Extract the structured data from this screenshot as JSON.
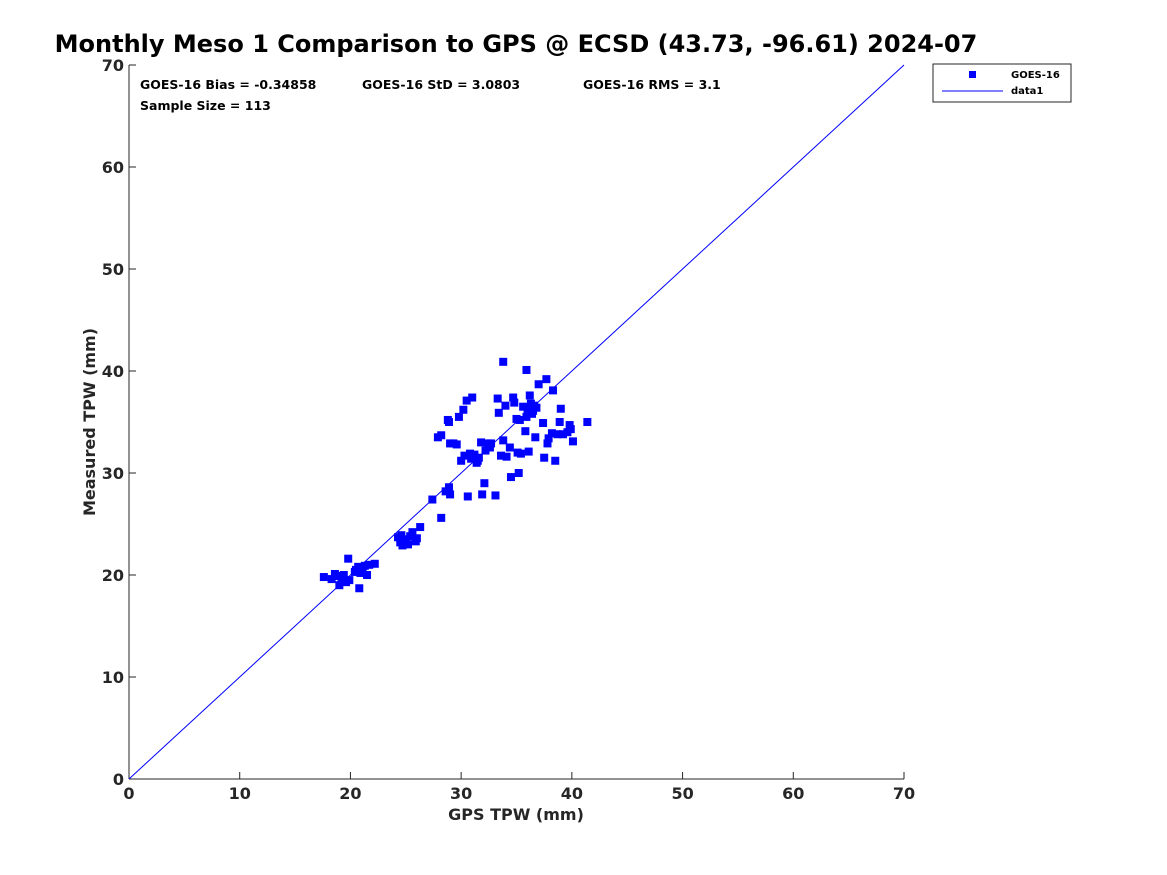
{
  "chart_data": {
    "type": "scatter",
    "title": "Monthly Meso 1 Comparison to GPS @ ECSD (43.73, -96.61) 2024-07",
    "xlabel": "GPS TPW (mm)",
    "ylabel": "Measured TPW (mm)",
    "xlim": [
      0,
      70
    ],
    "ylim": [
      0,
      70
    ],
    "xticks": [
      "0",
      "10",
      "20",
      "30",
      "40",
      "50",
      "60",
      "70"
    ],
    "yticks": [
      "0",
      "10",
      "20",
      "30",
      "40",
      "50",
      "60",
      "70"
    ],
    "grid": false,
    "legend_position": "top-right outside",
    "stats": {
      "bias": "GOES-16 Bias = -0.34858",
      "std": "GOES-16 StD = 3.0803",
      "rms": "GOES-16 RMS = 3.1",
      "sample_size": "Sample Size = 113"
    },
    "series": [
      {
        "name": "GOES-16",
        "marker": "square",
        "color": "#0000ff",
        "points": [
          [
            17.6,
            19.8
          ],
          [
            18.3,
            19.6
          ],
          [
            18.6,
            20.1
          ],
          [
            18.9,
            19.9
          ],
          [
            19.0,
            19.0
          ],
          [
            19.2,
            19.5
          ],
          [
            19.4,
            20.0
          ],
          [
            19.6,
            19.3
          ],
          [
            19.8,
            21.6
          ],
          [
            19.9,
            19.5
          ],
          [
            20.5,
            20.5
          ],
          [
            20.7,
            20.8
          ],
          [
            20.8,
            18.7
          ],
          [
            20.9,
            20.2
          ],
          [
            21.1,
            20.6
          ],
          [
            21.3,
            20.9
          ],
          [
            21.5,
            20.0
          ],
          [
            21.7,
            21.0
          ],
          [
            22.2,
            21.1
          ],
          [
            24.3,
            23.7
          ],
          [
            24.5,
            23.2
          ],
          [
            24.7,
            22.9
          ],
          [
            24.9,
            23.5
          ],
          [
            25.0,
            23.1
          ],
          [
            25.2,
            23.0
          ],
          [
            25.4,
            23.8
          ],
          [
            25.6,
            24.2
          ],
          [
            25.9,
            23.3
          ],
          [
            26.3,
            24.7
          ],
          [
            27.4,
            27.4
          ],
          [
            27.9,
            33.5
          ],
          [
            28.2,
            33.7
          ],
          [
            28.2,
            25.6
          ],
          [
            28.6,
            28.2
          ],
          [
            28.8,
            35.2
          ],
          [
            28.9,
            28.6
          ],
          [
            28.9,
            35.0
          ],
          [
            29.0,
            32.9
          ],
          [
            29.0,
            27.9
          ],
          [
            29.3,
            32.9
          ],
          [
            29.6,
            32.8
          ],
          [
            29.8,
            35.5
          ],
          [
            30.0,
            31.2
          ],
          [
            30.2,
            36.2
          ],
          [
            30.5,
            37.1
          ],
          [
            30.6,
            27.7
          ],
          [
            30.8,
            31.9
          ],
          [
            30.9,
            31.4
          ],
          [
            31.0,
            37.4
          ],
          [
            31.2,
            31.8
          ],
          [
            31.4,
            31.0
          ],
          [
            31.6,
            31.5
          ],
          [
            31.8,
            33.0
          ],
          [
            31.9,
            27.9
          ],
          [
            32.1,
            29.0
          ],
          [
            32.2,
            32.2
          ],
          [
            32.4,
            32.9
          ],
          [
            32.7,
            32.9
          ],
          [
            33.1,
            27.8
          ],
          [
            33.3,
            37.3
          ],
          [
            33.4,
            35.9
          ],
          [
            33.6,
            31.7
          ],
          [
            33.8,
            33.2
          ],
          [
            33.8,
            40.9
          ],
          [
            34.0,
            36.6
          ],
          [
            34.1,
            31.6
          ],
          [
            34.4,
            32.5
          ],
          [
            34.5,
            29.6
          ],
          [
            34.7,
            37.4
          ],
          [
            34.8,
            36.9
          ],
          [
            35.0,
            35.3
          ],
          [
            35.2,
            30.0
          ],
          [
            35.3,
            35.2
          ],
          [
            35.4,
            31.9
          ],
          [
            35.6,
            36.5
          ],
          [
            35.8,
            34.1
          ],
          [
            35.9,
            35.5
          ],
          [
            35.9,
            40.1
          ],
          [
            36.0,
            36.2
          ],
          [
            36.1,
            32.1
          ],
          [
            36.2,
            37.6
          ],
          [
            36.3,
            36.8
          ],
          [
            36.4,
            35.8
          ],
          [
            36.5,
            36.1
          ],
          [
            36.6,
            36.6
          ],
          [
            36.7,
            33.5
          ],
          [
            37.0,
            38.7
          ],
          [
            37.4,
            34.9
          ],
          [
            37.5,
            31.5
          ],
          [
            37.7,
            39.2
          ],
          [
            37.8,
            32.9
          ],
          [
            37.9,
            33.4
          ],
          [
            38.2,
            33.9
          ],
          [
            38.3,
            38.1
          ],
          [
            38.5,
            31.2
          ],
          [
            38.7,
            33.8
          ],
          [
            38.9,
            35.0
          ],
          [
            39.0,
            36.3
          ],
          [
            39.2,
            33.8
          ],
          [
            39.6,
            34.0
          ],
          [
            39.8,
            34.7
          ],
          [
            39.9,
            34.3
          ],
          [
            40.1,
            33.1
          ],
          [
            41.4,
            35.0
          ],
          [
            32.6,
            32.5
          ],
          [
            30.3,
            31.7
          ],
          [
            31.5,
            31.2
          ],
          [
            36.8,
            36.4
          ],
          [
            35.1,
            32.0
          ],
          [
            26.0,
            23.6
          ],
          [
            24.6,
            23.9
          ],
          [
            19.3,
            19.7
          ],
          [
            20.4,
            20.3
          ]
        ]
      },
      {
        "name": "data1",
        "type": "line",
        "color": "#0000ff",
        "points": [
          [
            0,
            0
          ],
          [
            70,
            70
          ]
        ]
      }
    ]
  }
}
